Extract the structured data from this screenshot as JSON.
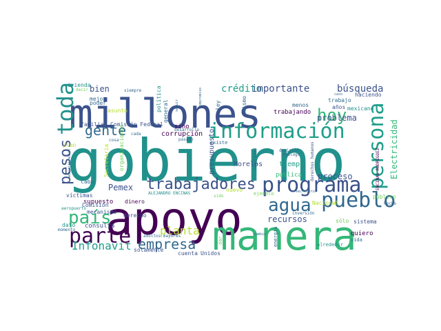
{
  "palette": {
    "purple": "#440154",
    "indigo": "#3b528b",
    "blue": "#31688e",
    "teal": "#21918c",
    "cyan": "#1f9e89",
    "green": "#35b779",
    "lime": "#6ece58",
    "yellow": "#b5de2b"
  },
  "words": [
    {
      "text": "gobierno",
      "color": "#21918c"
    },
    {
      "text": "apoyo",
      "color": "#440154"
    },
    {
      "text": "millones",
      "color": "#3b528b"
    },
    {
      "text": "manera",
      "color": "#35b779"
    },
    {
      "text": "información",
      "color": "#1f9e89"
    },
    {
      "text": "programa",
      "color": "#3b528b"
    },
    {
      "text": "persona",
      "color": "#1f9e89"
    },
    {
      "text": "trabajadores",
      "color": "#3b528b"
    },
    {
      "text": "parte",
      "color": "#440154"
    },
    {
      "text": "pueblo",
      "color": "#31688e"
    },
    {
      "text": "toda",
      "color": "#21918c"
    },
    {
      "text": "país",
      "color": "#35b779"
    },
    {
      "text": "agua",
      "color": "#31688e"
    },
    {
      "text": "hoy",
      "color": "#35b779"
    },
    {
      "text": "gente",
      "color": "#31688e"
    },
    {
      "text": "empresa",
      "color": "#31688e"
    },
    {
      "text": "pesos",
      "color": "#3b528b"
    },
    {
      "text": "planta",
      "color": "#b5de2b"
    },
    {
      "text": "Infonavit",
      "color": "#1f9e89"
    },
    {
      "text": "crédito",
      "color": "#1f9e89"
    },
    {
      "text": "importante",
      "color": "#3b528b"
    },
    {
      "text": "búsqueda",
      "color": "#3b528b"
    },
    {
      "text": "problema",
      "color": "#3b528b"
    },
    {
      "text": "recursos",
      "color": "#3b528b"
    },
    {
      "text": "proceso",
      "color": "#3b528b"
    },
    {
      "text": "Electricidad",
      "color": "#35b779"
    },
    {
      "text": "Pemex",
      "color": "#3b528b"
    },
    {
      "text": "bien",
      "color": "#3b528b"
    },
    {
      "text": "corrupción",
      "color": "#440154"
    },
    {
      "text": "tiempo",
      "color": "#1f9e89"
    },
    {
      "text": "Morelos",
      "color": "#3b528b"
    },
    {
      "text": "presupuesto",
      "color": "#3b528b"
    },
    {
      "text": "pública",
      "color": "#35b779"
    },
    {
      "text": "Comisión Federal",
      "color": "#3b528b"
    },
    {
      "text": "familia",
      "color": "#3b528b"
    },
    {
      "text": "sino",
      "color": "#440154"
    },
    {
      "text": "trabajando",
      "color": "#440154"
    },
    {
      "text": "mexicano",
      "color": "#21918c"
    },
    {
      "text": "haciendo",
      "color": "#3b528b"
    },
    {
      "text": "años",
      "color": "#3b528b"
    },
    {
      "text": "supuesto",
      "color": "#440154"
    },
    {
      "text": "víctimas",
      "color": "#3b528b"
    },
    {
      "text": "Comisión",
      "color": "#3b528b"
    },
    {
      "text": "mecanismo",
      "color": "#3b528b"
    },
    {
      "text": "dinero",
      "color": "#440154"
    },
    {
      "text": "consulta",
      "color": "#3b528b"
    },
    {
      "text": "derecho",
      "color": "#3b528b"
    },
    {
      "text": "cuenta",
      "color": "#3b528b"
    },
    {
      "text": "Unidos",
      "color": "#3b528b"
    },
    {
      "text": "solamente",
      "color": "#3b528b"
    },
    {
      "text": "quiero",
      "color": "#440154"
    },
    {
      "text": "sistema",
      "color": "#3b528b"
    },
    {
      "text": "sólo",
      "color": "#6ece58"
    },
    {
      "text": "Nacional",
      "color": "#b5de2b"
    },
    {
      "text": "público",
      "color": "#6ece58"
    },
    {
      "text": "vivienda",
      "color": "#21918c"
    },
    {
      "text": "mejor",
      "color": "#31688e"
    },
    {
      "text": "poder",
      "color": "#31688e"
    },
    {
      "text": "asunto",
      "color": "#b5de2b"
    },
    {
      "text": "política",
      "color": "#21918c"
    },
    {
      "text": "general",
      "color": "#31688e"
    },
    {
      "text": "mismo",
      "color": "#31688e"
    },
    {
      "text": "menos",
      "color": "#31688e"
    },
    {
      "text": "ley",
      "color": "#31688e"
    },
    {
      "text": "trabajo",
      "color": "#31688e"
    },
    {
      "text": "cabo",
      "color": "#31688e"
    },
    {
      "text": "plan",
      "color": "#b5de2b"
    },
    {
      "text": "dato",
      "color": "#21918c"
    },
    {
      "text": "alrededor",
      "color": "#21918c"
    },
    {
      "text": "vida",
      "color": "#31688e"
    },
    {
      "text": "hecho",
      "color": "#31688e"
    },
    {
      "text": "nuevo",
      "color": "#b5de2b"
    },
    {
      "text": "ejemplo",
      "color": "#6ece58"
    },
    {
      "text": "diálogo",
      "color": "#31688e"
    },
    {
      "text": "decisión",
      "color": "#31688e"
    },
    {
      "text": "inversión",
      "color": "#31688e"
    },
    {
      "text": "energía",
      "color": "#31688e"
    },
    {
      "text": "adultos mayores",
      "color": "#31688e"
    },
    {
      "text": "aeropuerto",
      "color": "#21918c"
    },
    {
      "text": "momento",
      "color": "#31688e"
    },
    {
      "text": "ALEJANDRO ENCINAS",
      "color": "#21918c"
    },
    {
      "text": "ENCINAS RODRÍGUEZ",
      "color": "#440154"
    },
    {
      "text": "derechos humanos",
      "color": "#3b528b"
    },
    {
      "text": "Secretaría",
      "color": "#b5de2b"
    },
    {
      "text": "organizaciones",
      "color": "#6ece58"
    },
    {
      "text": "seguridad",
      "color": "#31688e"
    },
    {
      "text": "existe",
      "color": "#31688e"
    },
    {
      "text": "pasado",
      "color": "#31688e"
    },
    {
      "text": "desarrollo",
      "color": "#31688e"
    },
    {
      "text": "cosa",
      "color": "#31688e"
    },
    {
      "text": "cada",
      "color": "#31688e"
    },
    {
      "text": "siempre",
      "color": "#31688e"
    },
    {
      "text": "decir",
      "color": "#6ece58"
    },
    {
      "text": "compromiso",
      "color": "#31688e"
    },
    {
      "text": "seguir",
      "color": "#31688e"
    },
    {
      "text": "administración",
      "color": "#31688e"
    },
    {
      "text": "cambio",
      "color": "#31688e"
    },
    {
      "text": "secretario",
      "color": "#31688e"
    },
    {
      "text": "caso",
      "color": "#31688e"
    },
    {
      "text": "sido",
      "color": "#6ece58"
    },
    {
      "text": "dar",
      "color": "#6ece58"
    }
  ]
}
